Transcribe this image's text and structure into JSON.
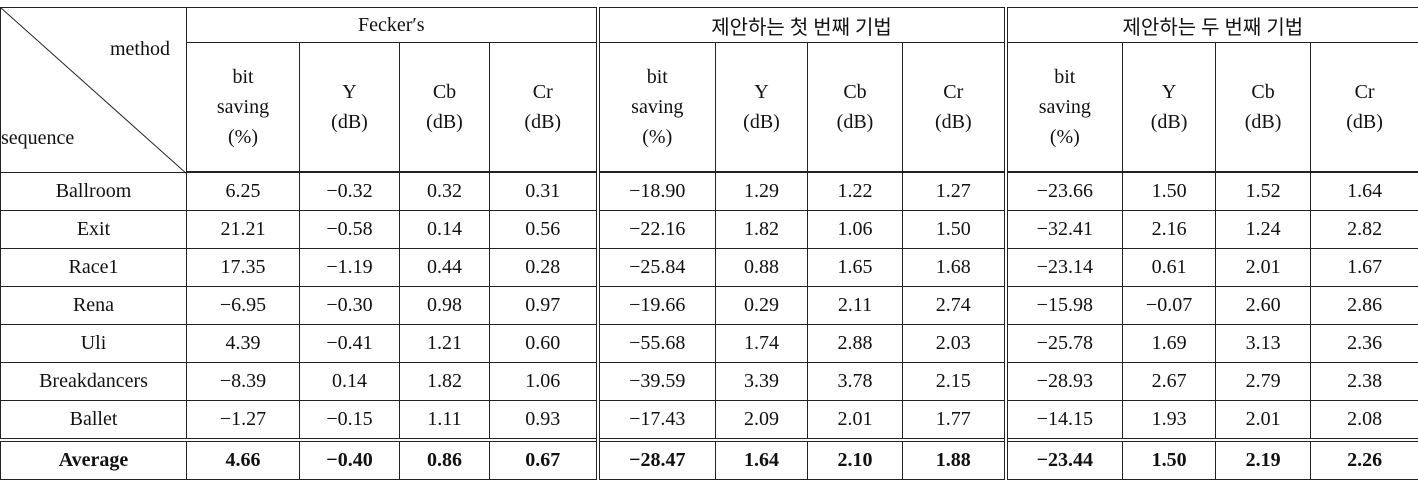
{
  "table": {
    "corner": {
      "top": "method",
      "bottom": "sequence"
    },
    "groups": [
      {
        "title": "Fecker′s",
        "columns": [
          [
            "bit",
            "saving",
            "(%)"
          ],
          [
            "Y",
            "(dB)"
          ],
          [
            "Cb",
            "(dB)"
          ],
          [
            "Cr",
            "(dB)"
          ]
        ]
      },
      {
        "title": "제안하는 첫 번째 기법",
        "columns": [
          [
            "bit",
            "saving",
            "(%)"
          ],
          [
            "Y",
            "(dB)"
          ],
          [
            "Cb",
            "(dB)"
          ],
          [
            "Cr",
            "(dB)"
          ]
        ]
      },
      {
        "title": "제안하는 두 번째 기법",
        "columns": [
          [
            "bit",
            "saving",
            "(%)"
          ],
          [
            "Y",
            "(dB)"
          ],
          [
            "Cb",
            "(dB)"
          ],
          [
            "Cr",
            "(dB)"
          ]
        ]
      }
    ],
    "rows": [
      {
        "sequence": "Ballroom",
        "cells": [
          "6.25",
          "−0.32",
          "0.32",
          "0.31",
          "−18.90",
          "1.29",
          "1.22",
          "1.27",
          "−23.66",
          "1.50",
          "1.52",
          "1.64"
        ]
      },
      {
        "sequence": "Exit",
        "cells": [
          "21.21",
          "−0.58",
          "0.14",
          "0.56",
          "−22.16",
          "1.82",
          "1.06",
          "1.50",
          "−32.41",
          "2.16",
          "1.24",
          "2.82"
        ]
      },
      {
        "sequence": "Race1",
        "cells": [
          "17.35",
          "−1.19",
          "0.44",
          "0.28",
          "−25.84",
          "0.88",
          "1.65",
          "1.68",
          "−23.14",
          "0.61",
          "2.01",
          "1.67"
        ]
      },
      {
        "sequence": "Rena",
        "cells": [
          "−6.95",
          "−0.30",
          "0.98",
          "0.97",
          "−19.66",
          "0.29",
          "2.11",
          "2.74",
          "−15.98",
          "−0.07",
          "2.60",
          "2.86"
        ]
      },
      {
        "sequence": "Uli",
        "cells": [
          "4.39",
          "−0.41",
          "1.21",
          "0.60",
          "−55.68",
          "1.74",
          "2.88",
          "2.03",
          "−25.78",
          "1.69",
          "3.13",
          "2.36"
        ]
      },
      {
        "sequence": "Breakdancers",
        "cells": [
          "−8.39",
          "0.14",
          "1.82",
          "1.06",
          "−39.59",
          "3.39",
          "3.78",
          "2.15",
          "−28.93",
          "2.67",
          "2.79",
          "2.38"
        ]
      },
      {
        "sequence": "Ballet",
        "cells": [
          "−1.27",
          "−0.15",
          "1.11",
          "0.93",
          "−17.43",
          "2.09",
          "2.01",
          "1.77",
          "−14.15",
          "1.93",
          "2.01",
          "2.08"
        ]
      },
      {
        "sequence": "Average",
        "cells": [
          "4.66",
          "−0.40",
          "0.86",
          "0.67",
          "−28.47",
          "1.64",
          "2.10",
          "1.88",
          "−23.44",
          "1.50",
          "2.19",
          "2.26"
        ]
      }
    ]
  }
}
